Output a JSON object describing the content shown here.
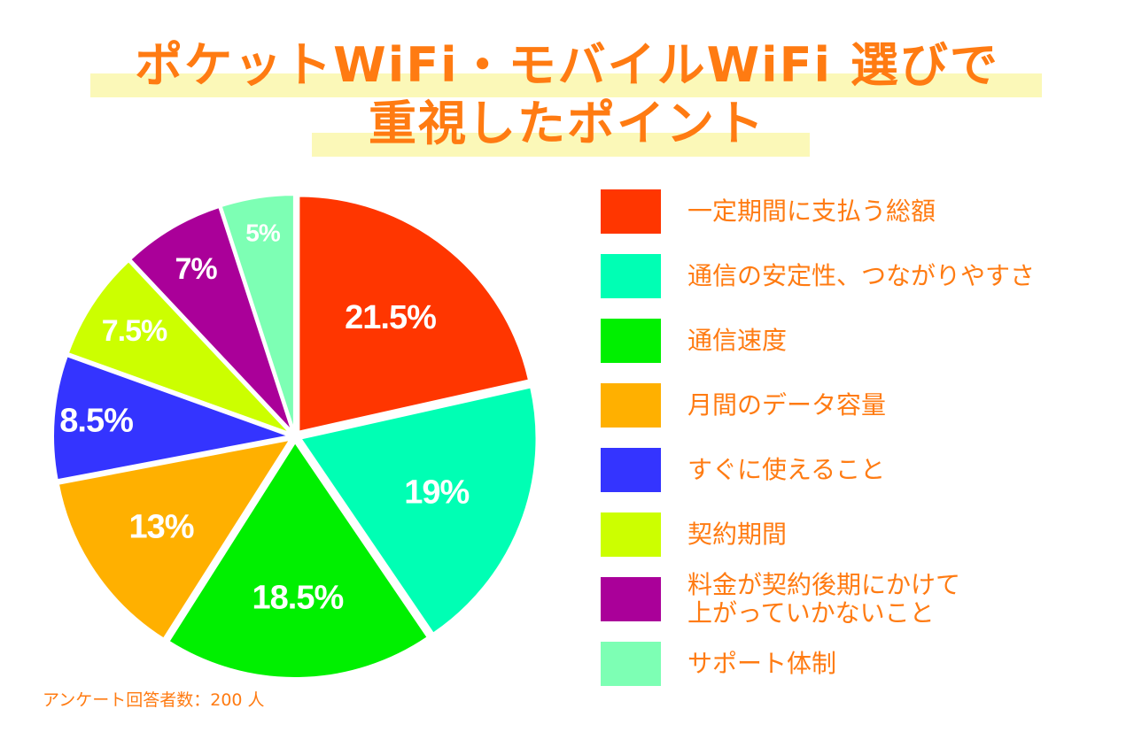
{
  "title": {
    "line1": "ポケットWiFi・モバイルWiFi 選びで",
    "line2": "重視したポイント"
  },
  "colors": {
    "title": "#ff7b12",
    "title_highlight": "#fbf8b8",
    "legend_text": "#ff7b12",
    "slice_label": "#ffffff",
    "separator": "#ffffff"
  },
  "chart_data": {
    "type": "pie",
    "start": "12 o'clock",
    "direction": "clockwise",
    "unit": "%",
    "legend_position": "right",
    "slices": [
      {
        "label": "一定期間に支払う総額",
        "value": 21.5,
        "value_label": "21.5%",
        "color": "#ff3600"
      },
      {
        "label": "通信の安定性、つながりやすさ",
        "value": 19,
        "value_label": "19%",
        "color": "#00ffb4"
      },
      {
        "label": "通信速度",
        "value": 18.5,
        "value_label": "18.5%",
        "color": "#00f000"
      },
      {
        "label": "月間のデータ容量",
        "value": 13,
        "value_label": "13%",
        "color": "#ffb000"
      },
      {
        "label": "すぐに使えること",
        "value": 8.5,
        "value_label": "8.5%",
        "color": "#3434ff"
      },
      {
        "label": "契約期間",
        "value": 7.5,
        "value_label": "7.5%",
        "color": "#ccff00"
      },
      {
        "label": "料金が契約後期にかけて\n上がっていかないこと",
        "value": 7,
        "value_label": "7%",
        "color": "#aa0099"
      },
      {
        "label": "サポート体制",
        "value": 5,
        "value_label": "5%",
        "color": "#7dffb4"
      }
    ]
  },
  "note": "アンケート回答者数：200 人"
}
